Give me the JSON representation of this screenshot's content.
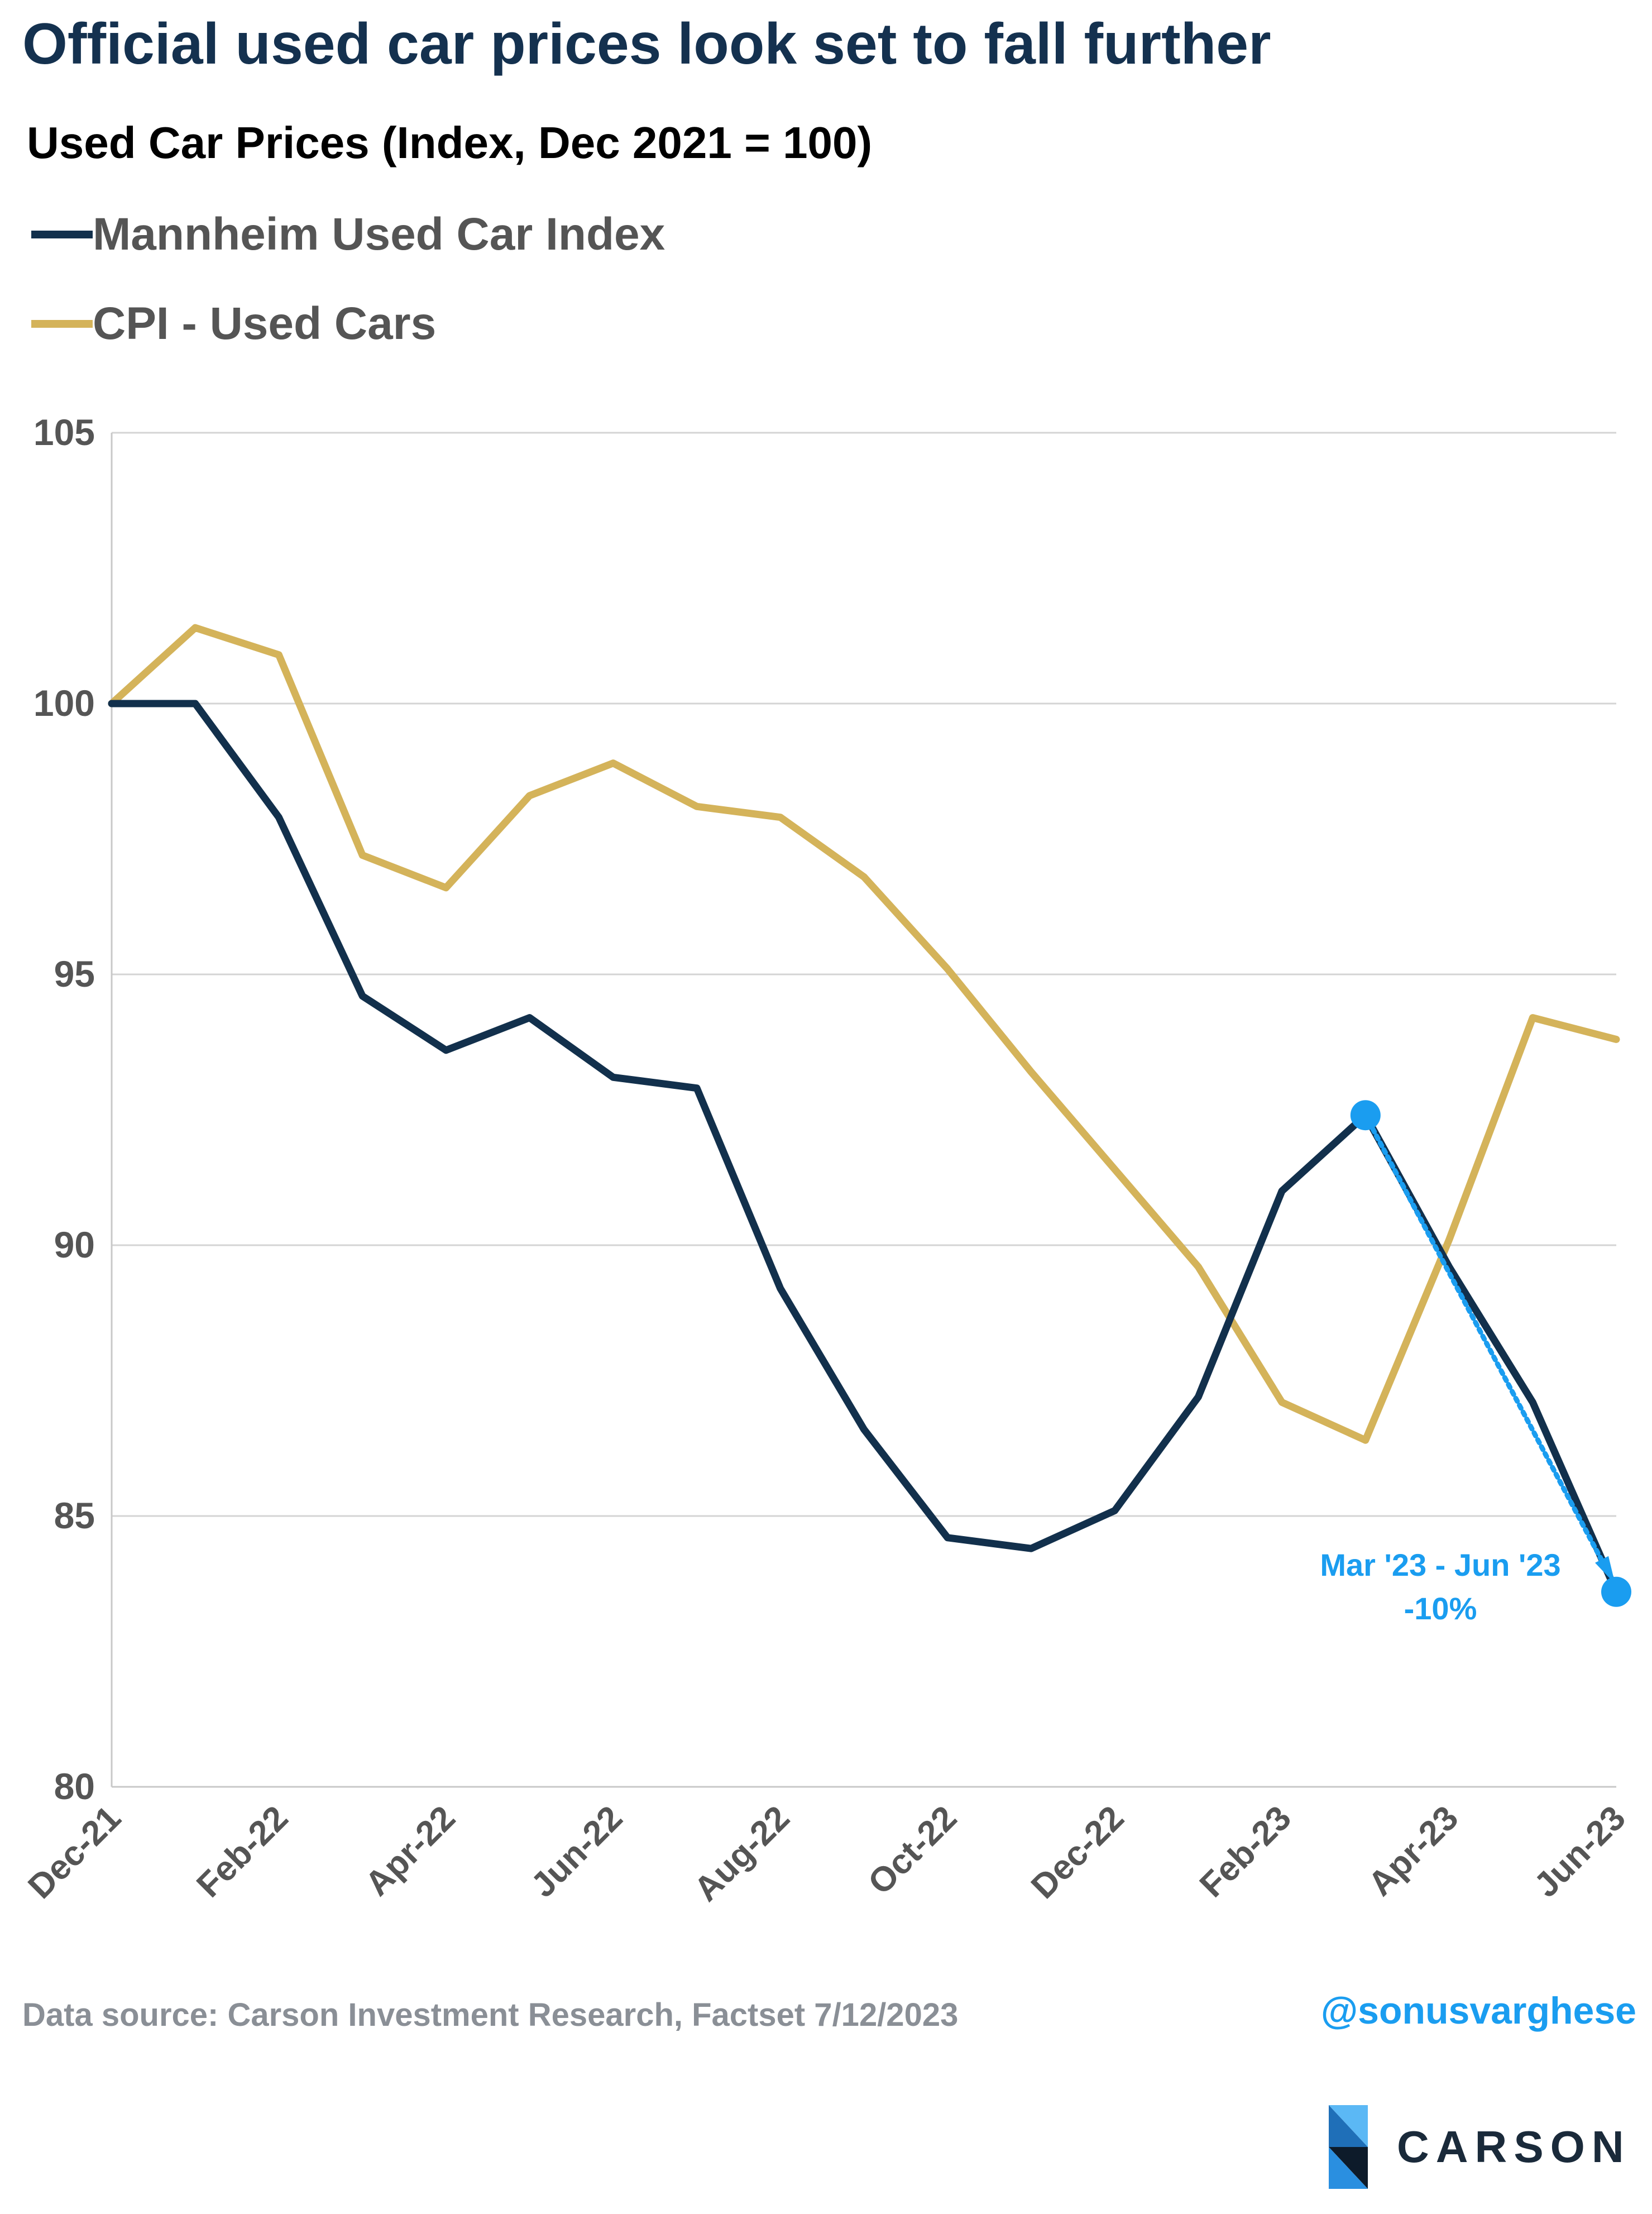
{
  "title": "Official used car prices look set to fall further",
  "subtitle": "Used Car Prices (Index, Dec 2021 = 100)",
  "legend": [
    {
      "label": "Mannheim Used Car Index",
      "color": "#12304c"
    },
    {
      "label": "CPI - Used Cars",
      "color": "#d4b35a"
    }
  ],
  "annotation": {
    "line1": "Mar '23 - Jun '23",
    "line2": "-10%",
    "color": "#1a9df0"
  },
  "footer": {
    "source": "Data source: Carson Investment Research, Factset   7/12/2023",
    "handle": "@sonusvarghese"
  },
  "logo": {
    "text": "CARSON",
    "icon": "carson-logo-icon"
  },
  "chart_data": {
    "type": "line",
    "x": [
      "Dec-21",
      "Jan-22",
      "Feb-22",
      "Mar-22",
      "Apr-22",
      "May-22",
      "Jun-22",
      "Jul-22",
      "Aug-22",
      "Sep-22",
      "Oct-22",
      "Nov-22",
      "Dec-22",
      "Jan-23",
      "Feb-23",
      "Mar-23",
      "Apr-23",
      "May-23",
      "Jun-23"
    ],
    "x_tick_labels": [
      "Dec-21",
      "Feb-22",
      "Apr-22",
      "Jun-22",
      "Aug-22",
      "Oct-22",
      "Dec-22",
      "Feb-23",
      "Apr-23",
      "Jun-23"
    ],
    "series": [
      {
        "name": "Mannheim Used Car Index",
        "color": "#12304c",
        "values": [
          100,
          100.0,
          97.9,
          94.6,
          93.6,
          94.2,
          93.1,
          92.9,
          89.2,
          86.6,
          84.6,
          84.4,
          85.1,
          87.2,
          91.0,
          92.4,
          89.6,
          87.1,
          83.6
        ]
      },
      {
        "name": "CPI - Used Cars",
        "color": "#d4b35a",
        "values": [
          100,
          101.4,
          100.9,
          97.2,
          96.6,
          98.3,
          98.9,
          98.1,
          97.9,
          96.8,
          95.1,
          93.2,
          91.4,
          89.6,
          87.1,
          86.4,
          90.1,
          94.2,
          93.8
        ]
      }
    ],
    "ylim": [
      80,
      105
    ],
    "yticks": [
      80,
      85,
      90,
      95,
      100,
      105
    ],
    "grid": "horizontal",
    "legend_position": "top-left",
    "highlight": {
      "series": "Mannheim Used Car Index",
      "from": "Mar-23",
      "to": "Jun-23",
      "change": "-10%"
    }
  }
}
